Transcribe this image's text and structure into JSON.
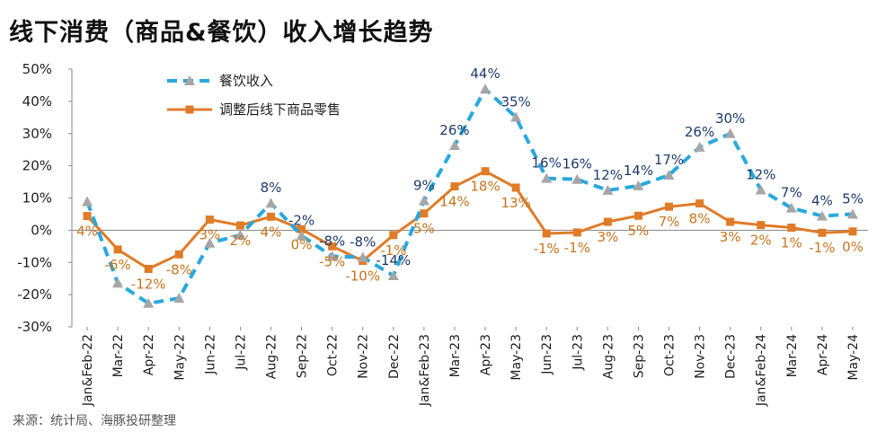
{
  "title": "线下消费（商品&餐饮）收入增长趋势",
  "source": "来源：统计局、海豚投研整理",
  "chart_data": {
    "type": "line",
    "categories": [
      "Jan&Feb-22",
      "Mar-22",
      "Apr-22",
      "May-22",
      "Jun-22",
      "Jul-22",
      "Aug-22",
      "Sep-22",
      "Oct-22",
      "Nov-22",
      "Dec-22",
      "Jan&Feb-23",
      "Mar-23",
      "Apr-23",
      "May-23",
      "Jun-23",
      "Jul-23",
      "Aug-23",
      "Sep-23",
      "Oct-23",
      "Nov-23",
      "Dec-23",
      "Jan&Feb-24",
      "Mar-24",
      "Apr-24",
      "May-24"
    ],
    "y_ticks": [
      "50%",
      "40%",
      "30%",
      "20%",
      "10%",
      "0%",
      "-10%",
      "-20%",
      "-30%"
    ],
    "ylim": [
      -30,
      50
    ],
    "series": [
      {
        "name": "餐饮收入",
        "color": "#2aa8de",
        "style": "dashed-triangle",
        "values": [
          8.9,
          -16.4,
          -22.7,
          -21.1,
          -4.0,
          -1.5,
          8.4,
          -1.7,
          -8.1,
          -8.4,
          -14.1,
          9.2,
          26.3,
          43.8,
          35.1,
          16.1,
          15.8,
          12.4,
          13.8,
          17.1,
          25.8,
          30.0,
          12.5,
          6.9,
          4.4,
          5.0
        ],
        "labels": [
          "",
          "",
          "",
          "",
          "",
          "",
          "8%",
          "-2%",
          "-8%",
          "-8%",
          "-14%",
          "9%",
          "26%",
          "44%",
          "35%",
          "16%",
          "16%",
          "12%",
          "14%",
          "17%",
          "26%",
          "30%",
          "12%",
          "7%",
          "4%",
          "5%"
        ]
      },
      {
        "name": "调整后线下商品零售",
        "color": "#e07b28",
        "style": "solid-square",
        "values": [
          4.4,
          -6.0,
          -12.0,
          -7.5,
          3.3,
          1.5,
          4.2,
          0.3,
          -5.0,
          -9.5,
          -1.5,
          5.2,
          13.6,
          18.3,
          13.2,
          -1.0,
          -0.7,
          2.6,
          4.5,
          7.3,
          8.3,
          2.6,
          1.6,
          0.8,
          -0.8,
          -0.4
        ],
        "labels": [
          "4%",
          "-6%",
          "-12%",
          "-8%",
          "3%",
          "2%",
          "4%",
          "0%",
          "-5%",
          "-10%",
          "-1%",
          "5%",
          "14%",
          "18%",
          "13%",
          "-1%",
          "-1%",
          "3%",
          "5%",
          "7%",
          "8%",
          "3%",
          "2%",
          "1%",
          "-1%",
          "0%"
        ]
      }
    ],
    "legend_position": "top-left"
  }
}
